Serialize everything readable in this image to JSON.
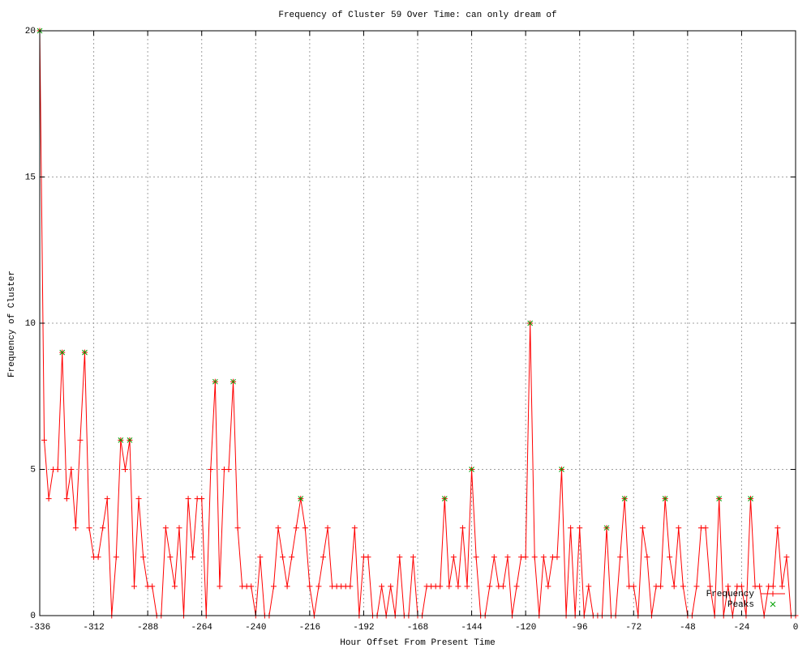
{
  "chart_data": {
    "type": "line",
    "title": "Frequency of Cluster 59 Over Time: can only dream of",
    "x_label": "Hour Offset From Present Time",
    "y_label": "Frequency of Cluster",
    "x": [
      -336,
      -334,
      -332,
      -330,
      -328,
      -326,
      -324,
      -322,
      -320,
      -318,
      -316,
      -314,
      -312,
      -310,
      -308,
      -306,
      -304,
      -302,
      -300,
      -298,
      -296,
      -294,
      -292,
      -290,
      -288,
      -286,
      -284,
      -282,
      -280,
      -278,
      -276,
      -274,
      -272,
      -270,
      -268,
      -266,
      -264,
      -262,
      -260,
      -258,
      -256,
      -254,
      -252,
      -250,
      -248,
      -246,
      -244,
      -242,
      -240,
      -238,
      -236,
      -234,
      -232,
      -230,
      -228,
      -226,
      -224,
      -222,
      -220,
      -218,
      -216,
      -214,
      -212,
      -210,
      -208,
      -206,
      -204,
      -202,
      -200,
      -198,
      -196,
      -194,
      -192,
      -190,
      -188,
      -186,
      -184,
      -182,
      -180,
      -178,
      -176,
      -174,
      -172,
      -170,
      -168,
      -166,
      -164,
      -162,
      -160,
      -158,
      -156,
      -154,
      -152,
      -150,
      -148,
      -146,
      -144,
      -142,
      -140,
      -138,
      -136,
      -134,
      -132,
      -130,
      -128,
      -126,
      -124,
      -122,
      -120,
      -118,
      -116,
      -114,
      -112,
      -110,
      -108,
      -106,
      -104,
      -102,
      -100,
      -98,
      -96,
      -94,
      -92,
      -90,
      -88,
      -86,
      -84,
      -82,
      -80,
      -78,
      -76,
      -74,
      -72,
      -70,
      -68,
      -66,
      -64,
      -62,
      -60,
      -58,
      -56,
      -54,
      -52,
      -50,
      -48,
      -46,
      -44,
      -42,
      -40,
      -38,
      -36,
      -34,
      -32,
      -30,
      -28,
      -26,
      -24,
      -22,
      -20,
      -18,
      -16,
      -14,
      -12,
      -10,
      -8,
      -6,
      -4,
      -2,
      0
    ],
    "series": [
      {
        "name": "Frequency",
        "color": "#ff0000",
        "marker": "plus",
        "values": [
          20,
          6,
          4,
          5,
          5,
          9,
          4,
          5,
          3,
          6,
          9,
          3,
          2,
          2,
          3,
          4,
          0,
          2,
          6,
          5,
          6,
          1,
          4,
          2,
          1,
          1,
          0,
          0,
          3,
          2,
          1,
          3,
          0,
          4,
          2,
          4,
          4,
          0,
          5,
          8,
          1,
          5,
          5,
          8,
          3,
          1,
          1,
          1,
          0,
          2,
          0,
          0,
          1,
          3,
          2,
          1,
          2,
          3,
          4,
          3,
          1,
          0,
          1,
          2,
          3,
          1,
          1,
          1,
          1,
          1,
          3,
          0,
          2,
          2,
          0,
          0,
          1,
          0,
          1,
          0,
          2,
          0,
          0,
          2,
          0,
          0,
          1,
          1,
          1,
          1,
          4,
          1,
          2,
          1,
          3,
          1,
          5,
          2,
          0,
          0,
          1,
          2,
          1,
          1,
          2,
          0,
          1,
          2,
          2,
          10,
          2,
          0,
          2,
          1,
          2,
          2,
          5,
          0,
          3,
          0,
          3,
          0,
          1,
          0,
          0,
          0,
          3,
          0,
          0,
          2,
          4,
          1,
          1,
          0,
          3,
          2,
          0,
          1,
          1,
          4,
          2,
          1,
          3,
          1,
          0,
          0,
          1,
          3,
          3,
          1,
          0,
          4,
          0,
          1,
          0,
          1,
          1,
          0,
          4,
          1,
          1,
          0,
          1,
          1,
          3,
          1,
          2,
          0,
          0
        ]
      },
      {
        "name": "Peaks",
        "color": "#00a000",
        "marker": "cross",
        "x": [
          -336,
          -326,
          -316,
          -300,
          -296,
          -258,
          -250,
          -220,
          -156,
          -144,
          -118,
          -104,
          -84,
          -76,
          -58,
          -34,
          -20
        ],
        "values": [
          20,
          9,
          9,
          6,
          6,
          8,
          8,
          4,
          4,
          5,
          10,
          5,
          3,
          4,
          4,
          4,
          4
        ]
      }
    ],
    "xlim": [
      -336,
      0
    ],
    "ylim": [
      0,
      20
    ],
    "xticks": [
      -336,
      -312,
      -288,
      -264,
      -240,
      -216,
      -192,
      -168,
      -144,
      -120,
      -96,
      -72,
      -48,
      -24,
      0
    ],
    "yticks": [
      0,
      5,
      10,
      15,
      20
    ],
    "grid": true,
    "legend": "bottom-right"
  }
}
